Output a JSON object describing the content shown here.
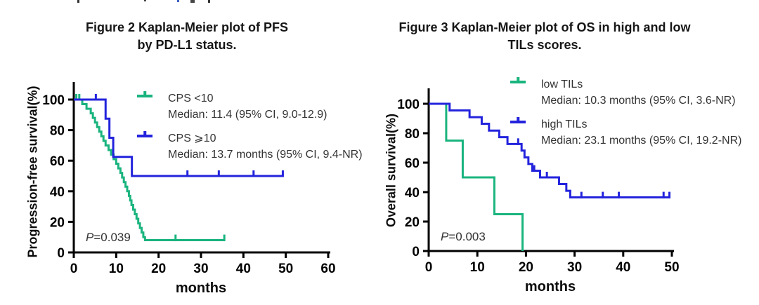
{
  "chart_data": [
    {
      "type": "line",
      "subtype": "kaplan-meier-step",
      "title_line1": "Figure 2 Kaplan-Meier plot of PFS",
      "title_line2": "by PD-L1 status.",
      "xlabel": "months",
      "ylabel": "Progression-free survival(%)",
      "xlim": [
        0,
        60
      ],
      "ylim": [
        0,
        100
      ],
      "xticks": [
        0,
        10,
        20,
        30,
        40,
        50,
        60
      ],
      "yticks": [
        0,
        20,
        40,
        60,
        80,
        100
      ],
      "grid": false,
      "legend_position": "inside-top-right",
      "pvalue_symbol": "P",
      "pvalue_rest": "=0.039",
      "axis_color": "#000000",
      "series": [
        {
          "name": "CPS <10",
          "median": "Median: 11.4 (95% CI, 9.0-12.9)",
          "color": "#1AB47E",
          "steps": [
            [
              0,
              100
            ],
            [
              2,
              97
            ],
            [
              3,
              94
            ],
            [
              4,
              91
            ],
            [
              4.5,
              88
            ],
            [
              5,
              85
            ],
            [
              5.5,
              82
            ],
            [
              6,
              79
            ],
            [
              6.5,
              76
            ],
            [
              7,
              73
            ],
            [
              7.5,
              70
            ],
            [
              8.2,
              67
            ],
            [
              8.8,
              64
            ],
            [
              9.4,
              61
            ],
            [
              10,
              58
            ],
            [
              10.5,
              55
            ],
            [
              11,
              52
            ],
            [
              11.4,
              49
            ],
            [
              11.8,
              46
            ],
            [
              12.2,
              43
            ],
            [
              12.6,
              40
            ],
            [
              13,
              37
            ],
            [
              13.3,
              34
            ],
            [
              13.6,
              31
            ],
            [
              14,
              28
            ],
            [
              14.4,
              25
            ],
            [
              14.8,
              22
            ],
            [
              15.2,
              19
            ],
            [
              15.6,
              16
            ],
            [
              16,
              13
            ],
            [
              16.4,
              10
            ],
            [
              16.8,
              8
            ],
            [
              35.5,
              8
            ]
          ],
          "censors": [
            [
              0.6,
              100
            ],
            [
              1.3,
              100
            ],
            [
              24,
              8
            ],
            [
              35.5,
              8
            ]
          ]
        },
        {
          "name": "CPS ⩾10",
          "median": "Median: 13.7 months (95% CI, 9.4-NR)",
          "color": "#2323DD",
          "steps": [
            [
              0,
              100
            ],
            [
              7.5,
              87.5
            ],
            [
              8.4,
              75
            ],
            [
              9.3,
              62.5
            ],
            [
              13.7,
              50
            ],
            [
              49.3,
              50
            ]
          ],
          "censors": [
            [
              5.2,
              100
            ],
            [
              26.8,
              50
            ],
            [
              34.2,
              50
            ],
            [
              42.4,
              50
            ],
            [
              49.3,
              50
            ]
          ]
        }
      ]
    },
    {
      "type": "line",
      "subtype": "kaplan-meier-step",
      "title_line1": "Figure 3 Kaplan-Meier plot of OS in high and low",
      "title_line2": "TILs scores.",
      "xlabel": "months",
      "ylabel": "Overall survival(%)",
      "xlim": [
        0,
        50
      ],
      "ylim": [
        0,
        100
      ],
      "xticks": [
        0,
        10,
        20,
        30,
        40,
        50
      ],
      "yticks": [
        0,
        20,
        40,
        60,
        80,
        100
      ],
      "grid": false,
      "legend_position": "inside-top-right",
      "pvalue_symbol": "P",
      "pvalue_rest": "=0.003",
      "axis_color": "#000000",
      "series": [
        {
          "name": "low TILs",
          "median": "Median: 10.3 months (95% CI, 3.6-NR)",
          "color": "#1AB47E",
          "steps": [
            [
              0,
              100
            ],
            [
              3.6,
              75
            ],
            [
              7,
              50
            ],
            [
              13.5,
              25
            ],
            [
              19.3,
              0
            ]
          ],
          "censors": []
        },
        {
          "name": "high TILs",
          "median": "Median: 23.1 months (95% CI, 19.2-NR)",
          "color": "#2323DD",
          "steps": [
            [
              0,
              100
            ],
            [
              4.3,
              95.5
            ],
            [
              8.4,
              90.9
            ],
            [
              10.9,
              86.4
            ],
            [
              12.4,
              81.8
            ],
            [
              14.5,
              77.3
            ],
            [
              16.2,
              72.7
            ],
            [
              19.1,
              68.2
            ],
            [
              19.7,
              63.6
            ],
            [
              20.5,
              59.1
            ],
            [
              21.3,
              54.5
            ],
            [
              22.9,
              50
            ],
            [
              26.8,
              45.5
            ],
            [
              28.3,
              40.9
            ],
            [
              29.1,
              36.4
            ],
            [
              49.5,
              36.4
            ]
          ],
          "censors": [
            [
              18.4,
              72.7
            ],
            [
              21.7,
              54.5
            ],
            [
              24.3,
              50
            ],
            [
              31.4,
              36.4
            ],
            [
              35.8,
              36.4
            ],
            [
              39.1,
              36.4
            ],
            [
              48.3,
              36.4
            ],
            [
              49.5,
              36.4
            ]
          ]
        }
      ]
    }
  ]
}
